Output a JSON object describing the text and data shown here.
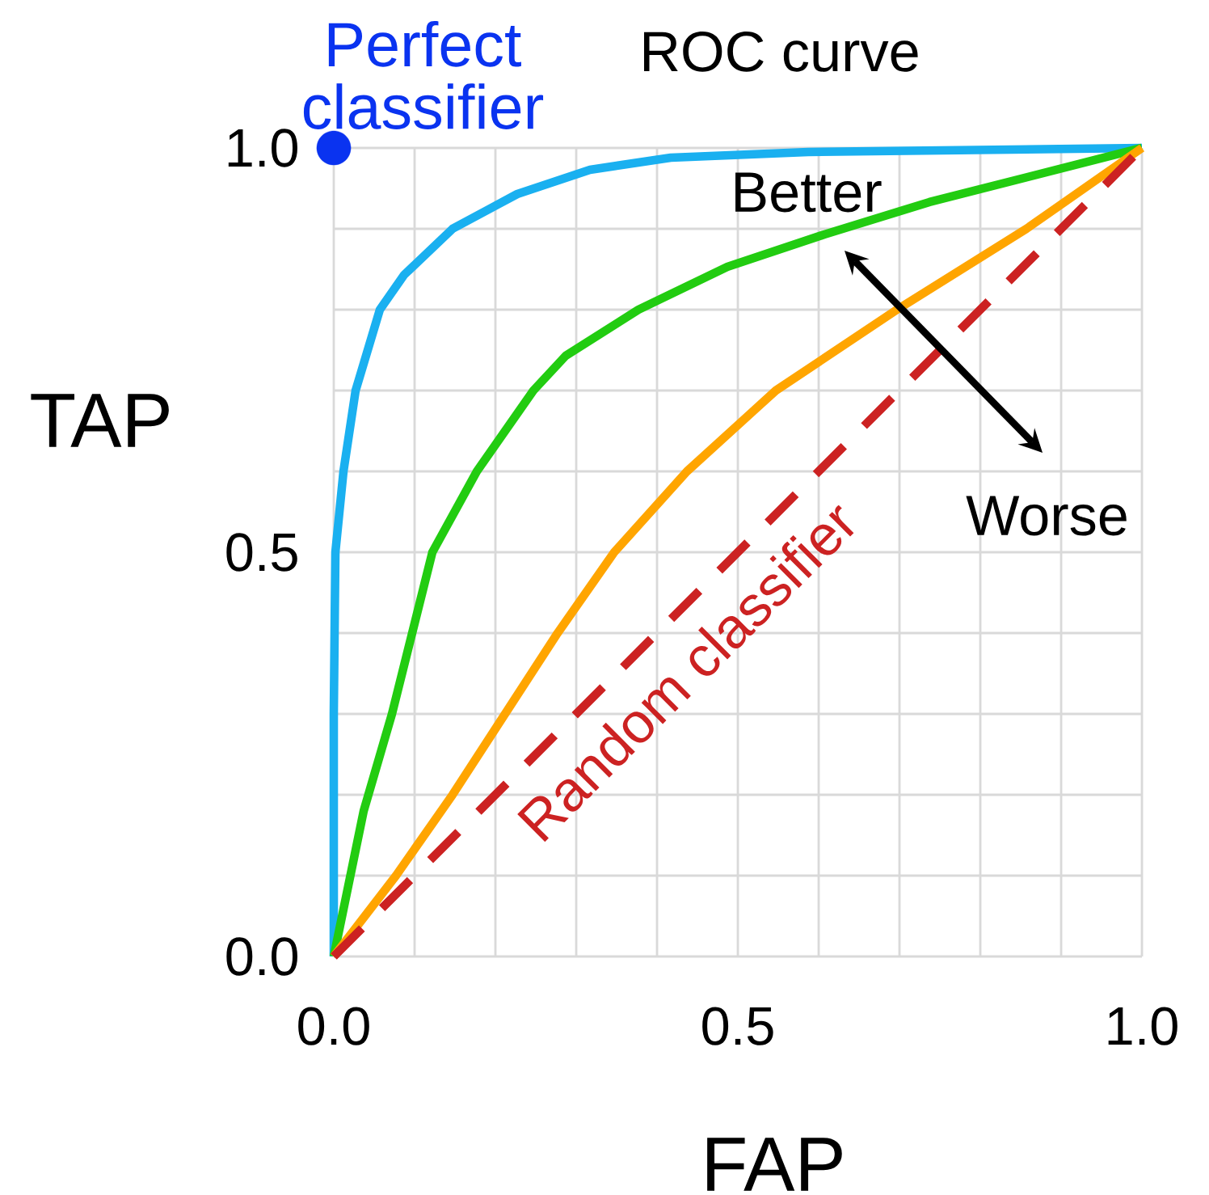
{
  "chart_data": {
    "type": "line",
    "title": "ROC curve",
    "xlabel": "FAP",
    "ylabel": "TAP",
    "xlim": [
      0,
      1
    ],
    "ylim": [
      0,
      1
    ],
    "xticks": [
      {
        "value": 0,
        "label": "0.0"
      },
      {
        "value": 0.1,
        "label": null
      },
      {
        "value": 0.2,
        "label": null
      },
      {
        "value": 0.3,
        "label": null
      },
      {
        "value": 0.4,
        "label": null
      },
      {
        "value": 0.5,
        "label": "0.5"
      },
      {
        "value": 0.6,
        "label": null
      },
      {
        "value": 0.7,
        "label": null
      },
      {
        "value": 0.8,
        "label": null
      },
      {
        "value": 0.9,
        "label": null
      },
      {
        "value": 1,
        "label": "1.0"
      }
    ],
    "yticks": [
      {
        "value": 0,
        "label": "0.0"
      },
      {
        "value": 0.1,
        "label": null
      },
      {
        "value": 0.2,
        "label": null
      },
      {
        "value": 0.3,
        "label": null
      },
      {
        "value": 0.4,
        "label": null
      },
      {
        "value": 0.5,
        "label": "0.5"
      },
      {
        "value": 0.6,
        "label": null
      },
      {
        "value": 0.7,
        "label": null
      },
      {
        "value": 0.8,
        "label": null
      },
      {
        "value": 0.9,
        "label": null
      },
      {
        "value": 1,
        "label": "1.0"
      }
    ],
    "grid": true,
    "series": [
      {
        "color": "#1ab0f0",
        "x": [
          0,
          0.0,
          0.002,
          0.012,
          0.027,
          0.057,
          0.087,
          0.147,
          0.227,
          0.317,
          0.417,
          0.587,
          1
        ],
        "values": [
          0,
          0.3,
          0.5,
          0.6,
          0.7,
          0.8,
          0.843,
          0.9,
          0.943,
          0.973,
          0.988,
          0.995,
          1
        ]
      },
      {
        "color": "#22cc11",
        "x": [
          0,
          0.037,
          0.072,
          0.122,
          0.177,
          0.247,
          0.287,
          0.377,
          0.487,
          0.607,
          0.737,
          1
        ],
        "values": [
          0,
          0.18,
          0.3,
          0.5,
          0.6,
          0.7,
          0.743,
          0.8,
          0.853,
          0.893,
          0.933,
          1
        ]
      },
      {
        "color": "#ffa500",
        "x": [
          0,
          0.077,
          0.147,
          0.212,
          0.277,
          0.347,
          0.437,
          0.547,
          0.697,
          0.857,
          1
        ],
        "values": [
          0,
          0.1,
          0.2,
          0.3,
          0.4,
          0.5,
          0.6,
          0.7,
          0.8,
          0.9,
          1
        ]
      },
      {
        "color": "#cc2222",
        "line_style": "dashed",
        "x": [
          0,
          1
        ],
        "values": [
          0,
          1
        ]
      },
      {
        "type": "scatter",
        "color": "#0a33f0",
        "marker": "circle",
        "x": [
          0
        ],
        "values": [
          1
        ]
      }
    ],
    "annotations": [
      "Perfect classifier",
      "Better",
      "Worse",
      "Random classifier"
    ]
  }
}
